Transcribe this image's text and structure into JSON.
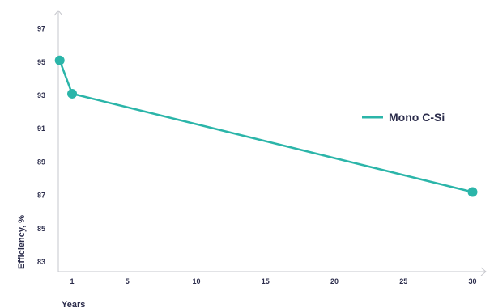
{
  "chart_data": {
    "type": "line",
    "xlabel": "Years",
    "ylabel": "Efficiency, %",
    "x_ticks": [
      1,
      5,
      10,
      15,
      20,
      25,
      30
    ],
    "y_ticks": [
      83,
      85,
      87,
      89,
      91,
      93,
      95,
      97
    ],
    "xlim": [
      0,
      31
    ],
    "ylim": [
      82.5,
      99
    ],
    "grid": false,
    "legend_position": "right",
    "series": [
      {
        "name": "Mono C-Si",
        "color": "#2bb5a9",
        "x": [
          0.1,
          1.0,
          30.0
        ],
        "y": [
          95.1,
          93.1,
          87.2
        ]
      }
    ]
  }
}
